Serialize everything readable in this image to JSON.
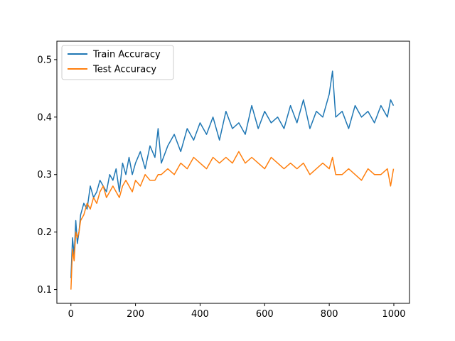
{
  "chart_data": {
    "type": "line",
    "title": "",
    "xlabel": "",
    "ylabel": "",
    "xlim": [
      -43.5,
      1048.5
    ],
    "ylim": [
      0.076,
      0.532
    ],
    "xticks": [
      0,
      200,
      400,
      600,
      800,
      1000
    ],
    "yticks": [
      0.1,
      0.2,
      0.3,
      0.4,
      0.5
    ],
    "xtick_labels": [
      "0",
      "200",
      "400",
      "600",
      "800",
      "1000"
    ],
    "ytick_labels": [
      "0.1",
      "0.2",
      "0.3",
      "0.4",
      "0.5"
    ],
    "grid": false,
    "legend": {
      "position": "top-left"
    },
    "noise_note_removed": true,
    "series": [
      {
        "name": "Train Accuracy",
        "color": "#1f77b4",
        "x": [
          0,
          5,
          10,
          15,
          20,
          25,
          30,
          40,
          50,
          60,
          70,
          80,
          90,
          100,
          110,
          120,
          130,
          140,
          150,
          160,
          170,
          180,
          190,
          200,
          215,
          230,
          245,
          260,
          270,
          280,
          300,
          320,
          340,
          360,
          380,
          400,
          420,
          440,
          460,
          480,
          500,
          520,
          540,
          560,
          580,
          600,
          620,
          640,
          660,
          680,
          700,
          720,
          740,
          760,
          780,
          800,
          810,
          820,
          840,
          860,
          880,
          900,
          920,
          940,
          960,
          980,
          990,
          999
        ],
        "y": [
          0.12,
          0.19,
          0.16,
          0.22,
          0.18,
          0.2,
          0.23,
          0.25,
          0.24,
          0.28,
          0.26,
          0.27,
          0.29,
          0.28,
          0.27,
          0.3,
          0.29,
          0.31,
          0.27,
          0.32,
          0.3,
          0.33,
          0.3,
          0.32,
          0.34,
          0.31,
          0.35,
          0.33,
          0.38,
          0.32,
          0.35,
          0.37,
          0.34,
          0.38,
          0.36,
          0.39,
          0.37,
          0.4,
          0.36,
          0.41,
          0.38,
          0.39,
          0.37,
          0.42,
          0.38,
          0.41,
          0.39,
          0.4,
          0.38,
          0.42,
          0.39,
          0.43,
          0.38,
          0.41,
          0.4,
          0.44,
          0.48,
          0.4,
          0.41,
          0.38,
          0.42,
          0.4,
          0.41,
          0.39,
          0.42,
          0.4,
          0.43,
          0.42
        ]
      },
      {
        "name": "Test Accuracy",
        "color": "#ff7f0e",
        "x": [
          0,
          5,
          10,
          15,
          20,
          25,
          30,
          40,
          50,
          60,
          70,
          80,
          90,
          100,
          110,
          120,
          130,
          140,
          150,
          160,
          170,
          180,
          190,
          200,
          215,
          230,
          245,
          260,
          270,
          280,
          300,
          320,
          340,
          360,
          380,
          400,
          420,
          440,
          460,
          480,
          500,
          520,
          540,
          560,
          580,
          600,
          620,
          640,
          660,
          680,
          700,
          720,
          740,
          760,
          780,
          800,
          810,
          820,
          840,
          860,
          880,
          900,
          920,
          940,
          960,
          980,
          990,
          999
        ],
        "y": [
          0.1,
          0.17,
          0.15,
          0.2,
          0.19,
          0.2,
          0.22,
          0.23,
          0.25,
          0.24,
          0.26,
          0.25,
          0.27,
          0.28,
          0.26,
          0.27,
          0.28,
          0.27,
          0.26,
          0.28,
          0.29,
          0.28,
          0.27,
          0.29,
          0.28,
          0.3,
          0.29,
          0.29,
          0.3,
          0.3,
          0.31,
          0.3,
          0.32,
          0.31,
          0.33,
          0.32,
          0.31,
          0.33,
          0.32,
          0.33,
          0.32,
          0.34,
          0.32,
          0.33,
          0.32,
          0.31,
          0.33,
          0.32,
          0.31,
          0.32,
          0.31,
          0.32,
          0.3,
          0.31,
          0.32,
          0.31,
          0.33,
          0.3,
          0.3,
          0.31,
          0.3,
          0.29,
          0.31,
          0.3,
          0.3,
          0.31,
          0.28,
          0.31
        ]
      }
    ]
  }
}
